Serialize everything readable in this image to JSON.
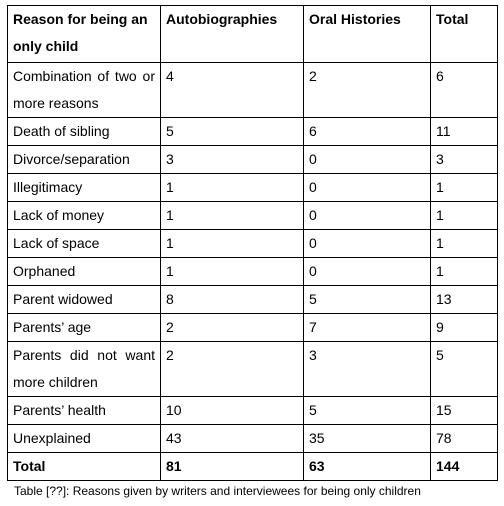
{
  "table": {
    "header": [
      "Reason for being an only child",
      "Autobiographies",
      "Oral Histories",
      "Total"
    ],
    "rows": [
      [
        "Combination of two or more reasons",
        4,
        2,
        6
      ],
      [
        "Death of sibling",
        5,
        6,
        11
      ],
      [
        "Divorce/separation",
        3,
        0,
        3
      ],
      [
        "Illegitimacy",
        1,
        0,
        1
      ],
      [
        "Lack of money",
        1,
        0,
        1
      ],
      [
        "Lack of space",
        1,
        0,
        1
      ],
      [
        "Orphaned",
        1,
        0,
        1
      ],
      [
        "Parent widowed",
        8,
        5,
        13
      ],
      [
        "Parents’ age",
        2,
        7,
        9
      ],
      [
        "Parents did not want more children",
        2,
        3,
        5
      ],
      [
        "Parents’ health",
        10,
        5,
        15
      ],
      [
        "Unexplained",
        43,
        35,
        78
      ]
    ],
    "total": [
      "Total",
      81,
      63,
      144
    ]
  },
  "caption": "Table [??]: Reasons given by writers and interviewees for being only children"
}
